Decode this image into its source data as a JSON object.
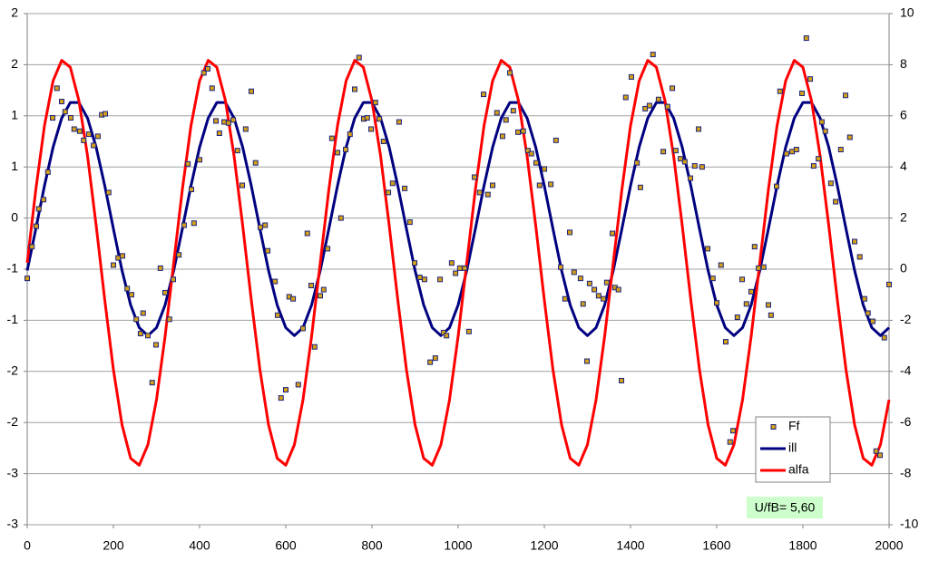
{
  "chart_data": {
    "type": "line",
    "annotation": "U/fB= 5,60",
    "legend": "bottom-right",
    "grid": true,
    "xlim": [
      0,
      2000
    ],
    "xticks": [
      0,
      200,
      400,
      600,
      800,
      1000,
      1200,
      1400,
      1600,
      1800,
      2000
    ],
    "ylim": [
      -3,
      2
    ],
    "yticks": [
      2,
      {
        "value": 1.5,
        "label": "2"
      },
      1,
      {
        "value": 0.5,
        "label": "1"
      },
      0,
      {
        "value": -0.5,
        "label": "-1"
      },
      -1,
      {
        "value": -1.5,
        "label": "-2"
      },
      -2,
      {
        "value": -2.5,
        "label": "-3"
      },
      -3
    ],
    "y2lim": [
      -10,
      10
    ],
    "y2ticks": [
      -10,
      -8,
      -6,
      -4,
      -2,
      0,
      2,
      4,
      6,
      8,
      10
    ],
    "x": [
      0,
      20,
      40,
      60,
      80,
      100,
      120,
      140,
      160,
      180,
      200,
      220,
      240,
      260,
      280,
      300,
      320,
      340,
      360,
      380,
      400,
      420,
      440,
      460,
      480,
      500,
      520,
      540,
      560,
      580,
      600,
      620,
      640,
      660,
      680,
      700,
      720,
      740,
      760,
      780,
      800,
      820,
      840,
      860,
      880,
      900,
      920,
      940,
      960,
      980,
      1000,
      1020,
      1040,
      1060,
      1080,
      1100,
      1120,
      1140,
      1160,
      1180,
      1200,
      1220,
      1240,
      1260,
      1280,
      1300,
      1320,
      1340,
      1360,
      1380,
      1400,
      1420,
      1440,
      1460,
      1480,
      1500,
      1520,
      1540,
      1560,
      1580,
      1600,
      1620,
      1640,
      1660,
      1680,
      1700,
      1720,
      1740,
      1760,
      1780,
      1800,
      1820,
      1840,
      1860,
      1880,
      1900,
      1920,
      1940,
      1960,
      1980,
      2000
    ],
    "series": [
      {
        "name": "Ff",
        "type": "scatter",
        "color": "#d4a017",
        "edge": "#1a237e",
        "x": [
          0,
          11,
          21,
          27,
          38,
          48,
          59,
          69,
          80,
          88,
          101,
          109,
          122,
          131,
          143,
          154,
          164,
          173,
          181,
          189,
          200,
          211,
          221,
          232,
          242,
          253,
          263,
          269,
          280,
          290,
          299,
          309,
          320,
          330,
          339,
          352,
          364,
          373,
          381,
          387,
          400,
          410,
          419,
          429,
          438,
          446,
          457,
          467,
          478,
          488,
          499,
          507,
          520,
          530,
          541,
          552,
          558,
          575,
          581,
          589,
          600,
          608,
          617,
          629,
          640,
          650,
          659,
          667,
          680,
          688,
          697,
          707,
          720,
          728,
          739,
          749,
          760,
          770,
          781,
          789,
          798,
          808,
          817,
          827,
          838,
          848,
          863,
          876,
          888,
          899,
          911,
          922,
          935,
          947,
          958,
          966,
          973,
          985,
          994,
          1004,
          1015,
          1025,
          1038,
          1050,
          1059,
          1069,
          1080,
          1090,
          1103,
          1111,
          1120,
          1128,
          1139,
          1151,
          1162,
          1170,
          1181,
          1189,
          1200,
          1215,
          1227,
          1238,
          1248,
          1259,
          1269,
          1284,
          1290,
          1299,
          1305,
          1316,
          1326,
          1337,
          1345,
          1358,
          1364,
          1372,
          1379,
          1389,
          1402,
          1415,
          1423,
          1434,
          1444,
          1452,
          1465,
          1476,
          1486,
          1497,
          1505,
          1516,
          1526,
          1539,
          1549,
          1558,
          1566,
          1579,
          1591,
          1600,
          1610,
          1621,
          1631,
          1638,
          1648,
          1659,
          1669,
          1680,
          1688,
          1697,
          1709,
          1720,
          1726,
          1739,
          1747,
          1762,
          1775,
          1785,
          1798,
          1808,
          1817,
          1825,
          1836,
          1844,
          1852,
          1865,
          1876,
          1888,
          1899,
          1909,
          1920,
          1932,
          1943,
          1951,
          1962,
          1970,
          1979,
          1989,
          2000
        ],
        "values": [
          -0.59,
          -0.28,
          -0.08,
          0.09,
          0.18,
          0.45,
          0.98,
          1.27,
          1.14,
          1.04,
          0.98,
          0.87,
          0.85,
          0.76,
          0.82,
          0.71,
          0.8,
          1.01,
          1.02,
          0.25,
          -0.46,
          -0.39,
          -0.37,
          -0.69,
          -0.75,
          -0.99,
          -1.13,
          -0.93,
          -1.15,
          -1.61,
          -1.24,
          -0.49,
          -0.73,
          -0.99,
          -0.6,
          -0.36,
          -0.07,
          0.53,
          0.28,
          -0.05,
          0.57,
          1.42,
          1.46,
          1.27,
          0.95,
          0.83,
          0.94,
          0.93,
          0.96,
          0.66,
          0.32,
          0.87,
          1.24,
          0.54,
          -0.09,
          -0.07,
          -0.32,
          -0.62,
          -0.95,
          -1.76,
          -1.68,
          -0.77,
          -0.79,
          -1.63,
          -1.08,
          -0.15,
          -0.66,
          -1.26,
          -0.76,
          -0.7,
          -0.3,
          0.78,
          0.64,
          0.0,
          0.67,
          0.82,
          1.26,
          1.57,
          0.97,
          0.98,
          0.87,
          1.13,
          0.97,
          0.75,
          0.25,
          0.34,
          0.94,
          0.29,
          -0.04,
          -0.44,
          -0.58,
          -0.6,
          -1.41,
          -1.37,
          -0.6,
          -1.12,
          -1.15,
          -0.44,
          -0.54,
          -0.49,
          -0.49,
          -1.11,
          0.4,
          0.25,
          1.21,
          0.23,
          0.32,
          1.03,
          0.8,
          0.96,
          1.42,
          1.05,
          0.84,
          0.85,
          0.66,
          0.63,
          0.54,
          0.32,
          0.48,
          0.33,
          0.76,
          -0.48,
          -0.79,
          -0.14,
          -0.53,
          -0.59,
          -0.84,
          -1.4,
          -0.64,
          -0.7,
          -0.76,
          -0.79,
          -0.63,
          -0.15,
          -0.68,
          -0.7,
          -1.59,
          1.18,
          1.38,
          0.54,
          0.3,
          1.07,
          1.1,
          1.6,
          1.16,
          0.65,
          1.09,
          1.27,
          0.66,
          0.58,
          0.55,
          0.39,
          0.51,
          0.87,
          0.5,
          -0.3,
          -0.59,
          -0.83,
          -0.46,
          -1.21,
          -2.19,
          -2.08,
          -0.97,
          -0.6,
          -0.84,
          -0.72,
          -0.28,
          -0.49,
          -0.48,
          -0.85,
          -0.95,
          0.31,
          1.24,
          0.63,
          0.65,
          0.67,
          1.22,
          1.76,
          1.36,
          0.51,
          0.58,
          0.94,
          0.85,
          0.34,
          0.16,
          0.67,
          1.2,
          0.79,
          -0.23,
          -0.38,
          -0.79,
          -0.93,
          -1.01,
          -2.28,
          -2.32,
          -1.17,
          -0.65
        ]
      },
      {
        "name": "ill",
        "type": "line",
        "axis": "y2",
        "color": "#000080",
        "values": [
          -0.05,
          1.58,
          3.26,
          4.77,
          5.91,
          6.52,
          6.52,
          5.91,
          4.77,
          3.26,
          1.58,
          -0.05,
          -1.4,
          -2.29,
          -2.6,
          -2.29,
          -1.4,
          -0.05,
          1.58,
          3.26,
          4.77,
          5.91,
          6.52,
          6.52,
          5.91,
          4.77,
          3.26,
          1.58,
          -0.05,
          -1.4,
          -2.29,
          -2.6,
          -2.29,
          -1.4,
          -0.05,
          1.58,
          3.26,
          4.77,
          5.91,
          6.52,
          6.52,
          5.91,
          4.77,
          3.26,
          1.58,
          -0.05,
          -1.4,
          -2.29,
          -2.6,
          -2.29,
          -1.4,
          -0.05,
          1.58,
          3.26,
          4.77,
          5.91,
          6.52,
          6.52,
          5.91,
          4.77,
          3.26,
          1.58,
          -0.05,
          -1.4,
          -2.29,
          -2.6,
          -2.29,
          -1.4,
          -0.05,
          1.58,
          3.26,
          4.77,
          5.91,
          6.52,
          6.52,
          5.91,
          4.77,
          3.26,
          1.58,
          -0.05,
          -1.4,
          -2.29,
          -2.6,
          -2.29,
          -1.4,
          -0.05,
          1.58,
          3.26,
          4.77,
          5.91,
          6.52,
          6.52,
          5.91,
          4.77,
          3.26,
          1.58,
          -0.05,
          -1.4,
          -2.29,
          -2.6,
          -2.29
        ]
      },
      {
        "name": "alfa",
        "type": "line",
        "axis": "y2",
        "color": "#ff0000",
        "values": [
          0.25,
          3.12,
          5.61,
          7.37,
          8.17,
          7.9,
          6.59,
          4.43,
          1.71,
          -1.21,
          -3.93,
          -6.09,
          -7.4,
          -7.67,
          -6.87,
          -5.11,
          -2.62,
          0.25,
          3.12,
          5.61,
          7.37,
          8.17,
          7.9,
          6.59,
          4.43,
          1.71,
          -1.21,
          -3.93,
          -6.09,
          -7.4,
          -7.67,
          -6.87,
          -5.11,
          -2.62,
          0.25,
          3.12,
          5.61,
          7.37,
          8.17,
          7.9,
          6.59,
          4.43,
          1.71,
          -1.21,
          -3.93,
          -6.09,
          -7.4,
          -7.67,
          -6.87,
          -5.11,
          -2.62,
          0.25,
          3.12,
          5.61,
          7.37,
          8.17,
          7.9,
          6.59,
          4.43,
          1.71,
          -1.21,
          -3.93,
          -6.09,
          -7.4,
          -7.67,
          -6.87,
          -5.11,
          -2.62,
          0.25,
          3.12,
          5.61,
          7.37,
          8.17,
          7.9,
          6.59,
          4.43,
          1.71,
          -1.21,
          -3.93,
          -6.09,
          -7.4,
          -7.67,
          -6.87,
          -5.11,
          -2.62,
          0.25,
          3.12,
          5.61,
          7.37,
          8.17,
          7.9,
          6.59,
          4.43,
          1.71,
          -1.21,
          -3.93,
          -6.09,
          -7.4,
          -7.67,
          -6.87,
          -5.11
        ]
      }
    ]
  }
}
